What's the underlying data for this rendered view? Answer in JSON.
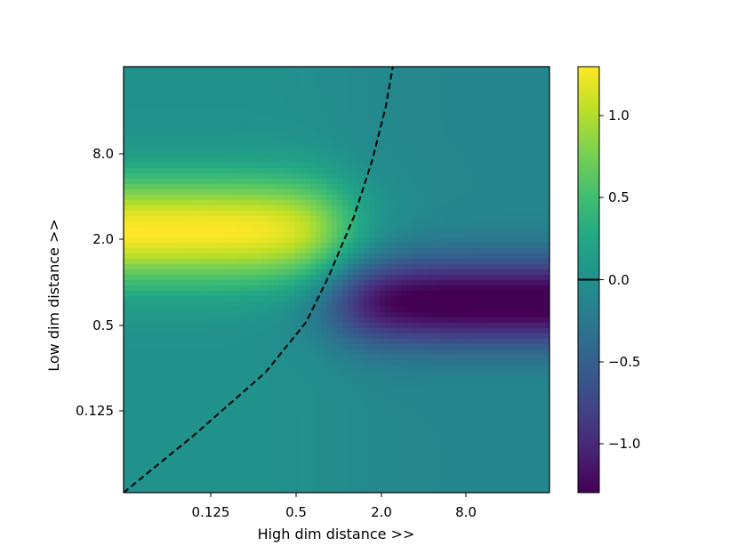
{
  "chart_data": {
    "type": "heatmap",
    "colormap": "viridis",
    "xlabel": "High dim distance >>",
    "ylabel": "Low dim distance >>",
    "x_scale": "log2",
    "y_scale": "log2",
    "xlim": [
      0.0156,
      64
    ],
    "ylim": [
      0.0234,
      32
    ],
    "xticks": [
      {
        "value": 0.125,
        "label": "0.125"
      },
      {
        "value": 0.5,
        "label": "0.5"
      },
      {
        "value": 2.0,
        "label": "2.0"
      },
      {
        "value": 8.0,
        "label": "8.0"
      }
    ],
    "yticks": [
      {
        "value": 0.125,
        "label": "0.125"
      },
      {
        "value": 0.5,
        "label": "0.5"
      },
      {
        "value": 2.0,
        "label": "2.0"
      },
      {
        "value": 8.0,
        "label": "8.0"
      }
    ],
    "colorbar": {
      "vmin": -1.3,
      "vmax": 1.3,
      "ticks": [
        {
          "value": 1.0,
          "label": "1.0"
        },
        {
          "value": 0.5,
          "label": "0.5"
        },
        {
          "value": 0.0,
          "label": "0.0"
        },
        {
          "value": -0.5,
          "label": "−0.5"
        },
        {
          "value": -1.0,
          "label": "−1.0"
        }
      ],
      "zero_line": true
    },
    "features": [
      {
        "kind": "positive-peak",
        "x_range": [
          0.0156,
          0.5
        ],
        "y_center": 2.0,
        "peak_value": 1.3
      },
      {
        "kind": "negative-trough",
        "x_range": [
          1.0,
          64
        ],
        "y_center": 0.6,
        "peak_value": -1.3
      }
    ],
    "zero_contour": {
      "style": "dashed",
      "color": "#000000",
      "points": [
        [
          0.0156,
          0.0234
        ],
        [
          0.0625,
          0.0625
        ],
        [
          0.25,
          0.18
        ],
        [
          0.55,
          0.42
        ],
        [
          0.85,
          0.9
        ],
        [
          1.4,
          2.5
        ],
        [
          2.0,
          6.5
        ],
        [
          2.6,
          16
        ],
        [
          3.0,
          32
        ]
      ]
    }
  }
}
